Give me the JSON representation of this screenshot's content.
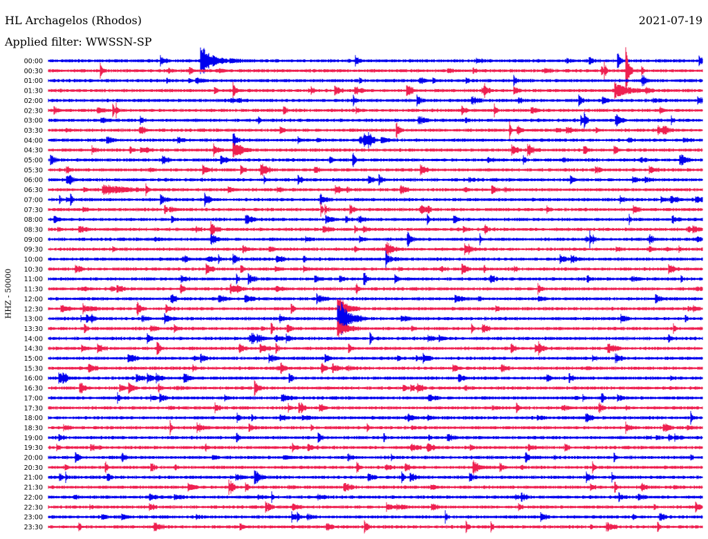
{
  "header": {
    "station": "HL Archagelos (Rhodos)",
    "filter": "Applied filter: WWSSN-SP",
    "date": "2021-07-19"
  },
  "chart_data": {
    "type": "line",
    "title": "HL Archagelos (Rhodos)",
    "subtitle": "Applied filter: WWSSN-SP",
    "date": "2021-07-19",
    "ylabel": "HHZ - 50000",
    "xlabel": "",
    "rows": [
      "00:00",
      "00:30",
      "01:00",
      "01:30",
      "02:00",
      "02:30",
      "03:00",
      "03:30",
      "04:00",
      "04:30",
      "05:00",
      "05:30",
      "06:00",
      "06:30",
      "07:00",
      "07:30",
      "08:00",
      "08:30",
      "09:00",
      "09:30",
      "10:00",
      "10:30",
      "11:00",
      "11:30",
      "12:00",
      "12:30",
      "13:00",
      "13:30",
      "14:00",
      "14:30",
      "15:00",
      "15:30",
      "16:00",
      "16:30",
      "17:00",
      "17:30",
      "18:00",
      "18:30",
      "19:00",
      "19:30",
      "20:00",
      "20:30",
      "21:00",
      "21:30",
      "22:00",
      "22:30",
      "23:00",
      "23:30"
    ],
    "colors": [
      "#0000ee",
      "#ee2050"
    ],
    "events": [
      {
        "row": "00:00",
        "minute": 7,
        "amplitude": 3.2,
        "duration": 1.2
      },
      {
        "row": "00:30",
        "minute": 26.5,
        "amplitude": 5,
        "duration": 0.3
      },
      {
        "row": "01:30",
        "minute": 8.5,
        "amplitude": 1.2,
        "duration": 0.3
      },
      {
        "row": "01:30",
        "minute": 20,
        "amplitude": 1.0,
        "duration": 0.3
      },
      {
        "row": "01:30",
        "minute": 26,
        "amplitude": 1.4,
        "duration": 1.5
      },
      {
        "row": "03:30",
        "minute": 16,
        "amplitude": 1.2,
        "duration": 0.3
      },
      {
        "row": "04:00",
        "minute": 8.5,
        "amplitude": 1.5,
        "duration": 0.3
      },
      {
        "row": "04:30",
        "minute": 8.5,
        "amplitude": 1.3,
        "duration": 0.8
      },
      {
        "row": "04:30",
        "minute": 22,
        "amplitude": 1.2,
        "duration": 0.6
      },
      {
        "row": "05:00",
        "minute": 29,
        "amplitude": 1.2,
        "duration": 0.6
      },
      {
        "row": "06:30",
        "minute": 2.5,
        "amplitude": 0.9,
        "duration": 2.5
      },
      {
        "row": "07:00",
        "minute": 12.5,
        "amplitude": 1.0,
        "duration": 0.5
      },
      {
        "row": "08:30",
        "minute": 7.5,
        "amplitude": 1.4,
        "duration": 0.4
      },
      {
        "row": "09:00",
        "minute": 16.5,
        "amplitude": 1.3,
        "duration": 0.3
      },
      {
        "row": "09:30",
        "minute": 15.5,
        "amplitude": 1.6,
        "duration": 0.6
      },
      {
        "row": "10:00",
        "minute": 15.5,
        "amplitude": 1.6,
        "duration": 0.3
      },
      {
        "row": "10:30",
        "minute": 19,
        "amplitude": 1.3,
        "duration": 0.3
      },
      {
        "row": "11:00",
        "minute": 14.5,
        "amplitude": 1.2,
        "duration": 0.3
      },
      {
        "row": "12:30",
        "minute": 13.3,
        "amplitude": 2.6,
        "duration": 1.0
      },
      {
        "row": "13:00",
        "minute": 13.3,
        "amplitude": 3.0,
        "duration": 1.3
      },
      {
        "row": "13:30",
        "minute": 13.3,
        "amplitude": 1.6,
        "duration": 1.0
      },
      {
        "row": "14:30",
        "minute": 5,
        "amplitude": 1.4,
        "duration": 0.3
      },
      {
        "row": "16:00",
        "minute": 0.5,
        "amplitude": 1.3,
        "duration": 0.4
      },
      {
        "row": "16:30",
        "minute": 9.5,
        "amplitude": 1.3,
        "duration": 0.3
      },
      {
        "row": "17:30",
        "minute": 11.5,
        "amplitude": 1.3,
        "duration": 0.3
      },
      {
        "row": "20:30",
        "minute": 19.5,
        "amplitude": 1.4,
        "duration": 0.6
      },
      {
        "row": "21:00",
        "minute": 9.5,
        "amplitude": 1.4,
        "duration": 0.5
      },
      {
        "row": "21:30",
        "minute": 8.3,
        "amplitude": 1.3,
        "duration": 0.3
      }
    ]
  }
}
